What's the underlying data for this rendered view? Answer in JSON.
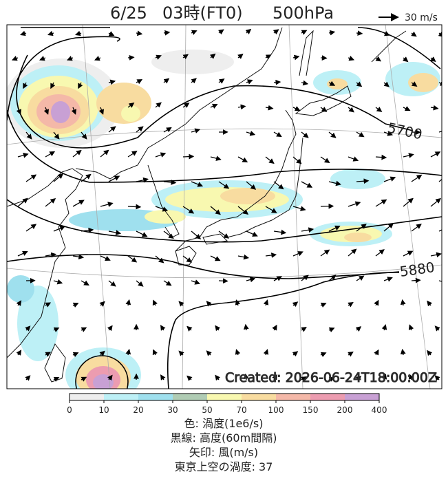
{
  "header": {
    "date": "6/25",
    "time": "03時(FT0)",
    "level": "500hPa",
    "wind_scale": "30 m/s"
  },
  "map": {
    "contour_labels": [
      "5700",
      "5880"
    ],
    "created": "Created: 2026-06-24T18:00:00Z"
  },
  "colorbar": {
    "ticks": [
      0,
      10,
      20,
      30,
      50,
      70,
      100,
      150,
      200,
      400
    ],
    "colors": [
      "#eeeeee",
      "#bdf0f6",
      "#9fe0ee",
      "#b0ccb4",
      "#f8f8b0",
      "#f8dca0",
      "#f4b8a8",
      "#ec9cb0",
      "#c8a0d4"
    ]
  },
  "caption": [
    "色: 渦度(1e6/s)",
    "黒線: 高度(60m間隔)",
    "矢印: 風(m/s)",
    "東京上空の渦度: 37"
  ]
}
